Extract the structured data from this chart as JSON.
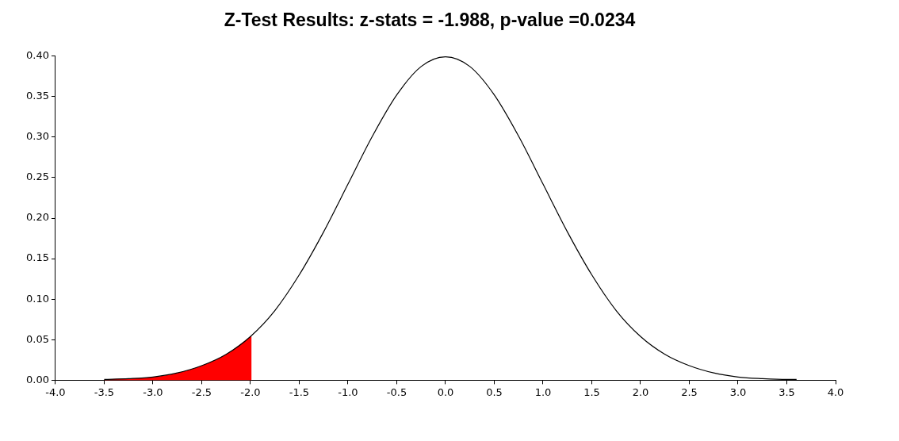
{
  "chart_data": {
    "type": "line",
    "title": "Z-Test Results: z-stats = -1.988, p-value =0.0234",
    "xlim": [
      -4,
      4
    ],
    "xticks": [
      {
        "value": -4,
        "label": "-4.0"
      },
      {
        "value": -3.5,
        "label": "-3.5"
      },
      {
        "value": -3,
        "label": "-3.0"
      },
      {
        "value": -2.5,
        "label": "-2.5"
      },
      {
        "value": -2,
        "label": "-2.0"
      },
      {
        "value": -1.5,
        "label": "-1.5"
      },
      {
        "value": -1,
        "label": "-1.0"
      },
      {
        "value": -0.5,
        "label": "-0.5"
      },
      {
        "value": 0,
        "label": "0.0"
      },
      {
        "value": 0.5,
        "label": "0.5"
      },
      {
        "value": 1,
        "label": "1.0"
      },
      {
        "value": 1.5,
        "label": "1.5"
      },
      {
        "value": 2,
        "label": "2.0"
      },
      {
        "value": 2.5,
        "label": "2.5"
      },
      {
        "value": 3,
        "label": "3.0"
      },
      {
        "value": 3.5,
        "label": "3.5"
      },
      {
        "value": 4,
        "label": "4.0"
      }
    ],
    "ylim": [
      0,
      0.4
    ],
    "yticks": [
      {
        "value": 0,
        "label": "0.00"
      },
      {
        "value": 0.05,
        "label": "0.05"
      },
      {
        "value": 0.1,
        "label": "0.10"
      },
      {
        "value": 0.15,
        "label": "0.15"
      },
      {
        "value": 0.2,
        "label": "0.20"
      },
      {
        "value": 0.25,
        "label": "0.25"
      },
      {
        "value": 0.3,
        "label": "0.30"
      },
      {
        "value": 0.35,
        "label": "0.35"
      },
      {
        "value": 0.4,
        "label": "0.40"
      }
    ],
    "grid": false,
    "legend": false,
    "marker": "none",
    "line_style": "solid",
    "series": [
      {
        "type": "area",
        "color": "#ff0000",
        "x": [
          -3.5,
          -3.25,
          -3,
          -2.75,
          -2.5,
          -2.25,
          -2,
          -1.988
        ],
        "values": [
          0.001,
          0.002,
          0.004,
          0.009,
          0.018,
          0.032,
          0.054,
          0.055
        ]
      },
      {
        "type": "line",
        "color": "#000000",
        "x": [
          -3.5,
          -3.25,
          -3,
          -2.75,
          -2.5,
          -2.25,
          -2,
          -1.75,
          -1.5,
          -1.25,
          -1,
          -0.75,
          -0.5,
          -0.25,
          0,
          0.25,
          0.5,
          0.75,
          1,
          1.25,
          1.5,
          1.75,
          2,
          2.25,
          2.5,
          2.75,
          3,
          3.25,
          3.5,
          3.6
        ],
        "values": [
          0.001,
          0.002,
          0.004,
          0.009,
          0.018,
          0.032,
          0.054,
          0.086,
          0.13,
          0.183,
          0.242,
          0.301,
          0.352,
          0.387,
          0.399,
          0.387,
          0.352,
          0.301,
          0.242,
          0.183,
          0.13,
          0.086,
          0.054,
          0.032,
          0.018,
          0.009,
          0.004,
          0.002,
          0.001,
          0.001
        ]
      }
    ]
  }
}
